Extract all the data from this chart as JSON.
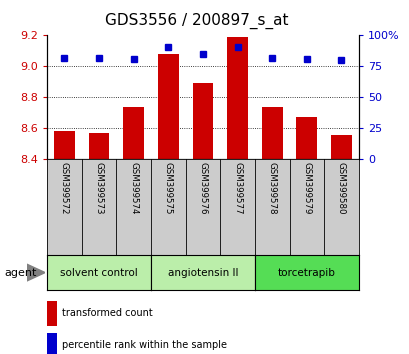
{
  "title": "GDS3556 / 200897_s_at",
  "samples": [
    "GSM399572",
    "GSM399573",
    "GSM399574",
    "GSM399575",
    "GSM399576",
    "GSM399577",
    "GSM399578",
    "GSM399579",
    "GSM399580"
  ],
  "transformed_counts": [
    8.58,
    8.57,
    8.74,
    9.08,
    8.89,
    9.19,
    8.74,
    8.67,
    8.56
  ],
  "percentile_ranks": [
    82,
    82,
    81,
    91,
    85,
    91,
    82,
    81,
    80
  ],
  "ymin": 8.4,
  "ymax": 9.2,
  "yticks_left": [
    8.4,
    8.6,
    8.8,
    9.0,
    9.2
  ],
  "yticks_right": [
    0,
    25,
    50,
    75,
    100
  ],
  "bar_color": "#cc0000",
  "dot_color": "#0000cc",
  "groups": [
    {
      "label": "solvent control",
      "start": 0,
      "end": 3,
      "color": "#bbeeaa"
    },
    {
      "label": "angiotensin II",
      "start": 3,
      "end": 6,
      "color": "#bbeeaa"
    },
    {
      "label": "torcetrapib",
      "start": 6,
      "end": 9,
      "color": "#55dd55"
    }
  ],
  "agent_label": "agent",
  "legend_bar_label": "transformed count",
  "legend_dot_label": "percentile rank within the sample",
  "bar_bottom": 8.4,
  "grid_lines": [
    8.6,
    8.8,
    9.0
  ],
  "ylabel_left_color": "#cc0000",
  "ylabel_right_color": "#0000cc",
  "title_fontsize": 11,
  "sample_bg_color": "#cccccc",
  "xlim_min": -0.5,
  "xlim_max": 8.5
}
